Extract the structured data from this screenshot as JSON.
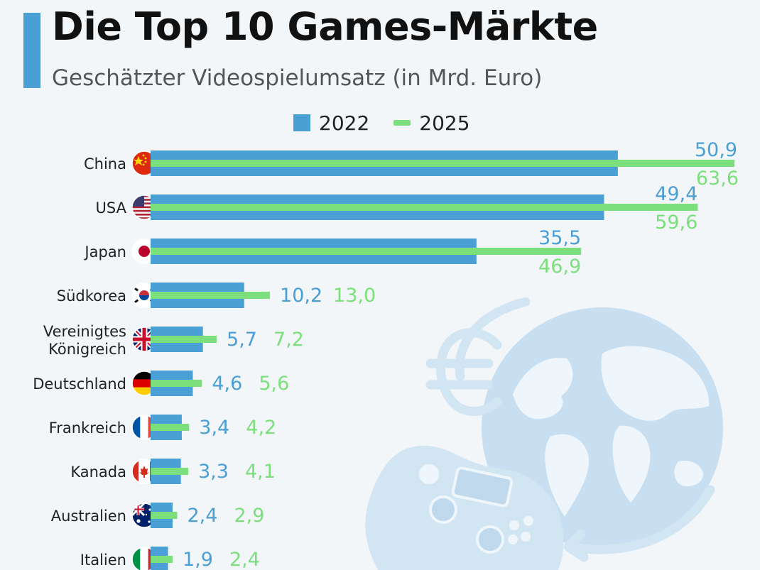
{
  "header": {
    "title": "Die Top 10 Games-Märkte",
    "subtitle": "Geschätzter Videospielumsatz (in Mrd. Euro)"
  },
  "colors": {
    "accent": "#4a9fd5",
    "series_2022": "#4a9fd5",
    "series_2025": "#7be07b",
    "illustration": "#cfe3f2"
  },
  "chart_data": {
    "type": "bar",
    "orientation": "horizontal",
    "title": "Die Top 10 Games-Märkte",
    "subtitle": "Geschätzter Videospielumsatz (in Mrd. Euro)",
    "xlabel": "",
    "ylabel": "",
    "grid": false,
    "legend_position": "top-center",
    "categories": [
      "China",
      "USA",
      "Japan",
      "Südkorea",
      "Vereinigtes Königreich",
      "Deutschland",
      "Frankreich",
      "Kanada",
      "Australien",
      "Italien"
    ],
    "category_lines": [
      [
        "China"
      ],
      [
        "USA"
      ],
      [
        "Japan"
      ],
      [
        "Südkorea"
      ],
      [
        "Vereinigtes",
        "Königreich"
      ],
      [
        "Deutschland"
      ],
      [
        "Frankreich"
      ],
      [
        "Kanada"
      ],
      [
        "Australien"
      ],
      [
        "Italien"
      ]
    ],
    "flag_icons": [
      "china-flag-icon",
      "usa-flag-icon",
      "japan-flag-icon",
      "south-korea-flag-icon",
      "uk-flag-icon",
      "germany-flag-icon",
      "france-flag-icon",
      "canada-flag-icon",
      "australia-flag-icon",
      "italy-flag-icon"
    ],
    "series": [
      {
        "name": "2022",
        "values": [
          50.9,
          49.4,
          35.5,
          10.2,
          5.7,
          4.6,
          3.4,
          3.3,
          2.4,
          1.9
        ],
        "labels": [
          "50,9",
          "49,4",
          "35,5",
          "10,2",
          "5,7",
          "4,6",
          "3,4",
          "3,3",
          "2,4",
          "1,9"
        ],
        "color": "#4a9fd5"
      },
      {
        "name": "2025",
        "values": [
          63.6,
          59.6,
          46.9,
          13.0,
          7.2,
          5.6,
          4.2,
          4.1,
          2.9,
          2.4
        ],
        "labels": [
          "63,6",
          "59,6",
          "46,9",
          "13,0",
          "7,2",
          "5,6",
          "4,2",
          "4,1",
          "2,9",
          "2,4"
        ],
        "color": "#7be07b"
      }
    ],
    "xlim": [
      0,
      63.6
    ]
  }
}
